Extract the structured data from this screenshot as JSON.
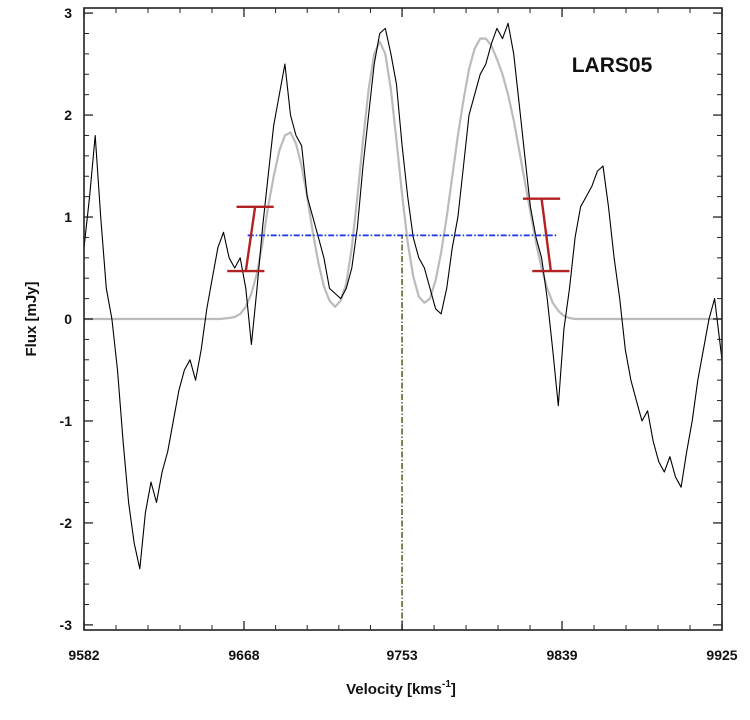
{
  "chart_data": {
    "type": "line",
    "annotation": "LARS05",
    "xlabel_main": "Velocity [kms",
    "xlabel_sup": "-1",
    "xlabel_close": "]",
    "ylabel": "Flux [mJy]",
    "xlim": [
      9582,
      9925
    ],
    "ylim": [
      -3.05,
      3.05
    ],
    "x_ticks": [
      9582,
      9668,
      9753,
      9839,
      9925
    ],
    "y_ticks": [
      -3,
      -2,
      -1,
      0,
      1,
      2,
      3
    ],
    "grid": false,
    "colors": {
      "observed": "#000000",
      "model": "#bbbbbb",
      "width_line": "#1a33e6",
      "center_line": "#556b2f",
      "error_bars": "#b22222"
    },
    "series": [
      {
        "role": "observed",
        "x": [
          9582,
          9585,
          9588,
          9591,
          9594,
          9597,
          9600,
          9603,
          9606,
          9609,
          9612,
          9615,
          9618,
          9621,
          9624,
          9627,
          9630,
          9633,
          9636,
          9639,
          9642,
          9645,
          9648,
          9651,
          9654,
          9657,
          9660,
          9663,
          9666,
          9669,
          9672,
          9675,
          9678,
          9681,
          9684,
          9687,
          9690,
          9693,
          9696,
          9699,
          9702,
          9705,
          9708,
          9711,
          9714,
          9717,
          9720,
          9723,
          9726,
          9729,
          9732,
          9735,
          9738,
          9741,
          9744,
          9747,
          9750,
          9753,
          9756,
          9759,
          9762,
          9765,
          9768,
          9771,
          9774,
          9777,
          9780,
          9783,
          9786,
          9789,
          9792,
          9795,
          9798,
          9801,
          9804,
          9807,
          9810,
          9813,
          9816,
          9819,
          9822,
          9825,
          9828,
          9831,
          9834,
          9837,
          9840,
          9843,
          9846,
          9849,
          9852,
          9855,
          9858,
          9861,
          9864,
          9867,
          9870,
          9873,
          9876,
          9879,
          9882,
          9885,
          9888,
          9891,
          9894,
          9897,
          9900,
          9903,
          9906,
          9909,
          9912,
          9915,
          9918,
          9921,
          9925
        ],
        "y": [
          0.7,
          1.2,
          1.8,
          1.0,
          0.3,
          0.0,
          -0.5,
          -1.2,
          -1.8,
          -2.2,
          -2.45,
          -1.9,
          -1.6,
          -1.8,
          -1.5,
          -1.3,
          -1.0,
          -0.7,
          -0.5,
          -0.4,
          -0.6,
          -0.3,
          0.1,
          0.4,
          0.7,
          0.85,
          0.6,
          0.5,
          0.6,
          0.3,
          -0.25,
          0.3,
          0.9,
          1.4,
          1.9,
          2.2,
          2.5,
          2.0,
          1.8,
          1.7,
          1.2,
          1.0,
          0.8,
          0.6,
          0.3,
          0.25,
          0.2,
          0.3,
          0.5,
          0.9,
          1.5,
          2.0,
          2.5,
          2.8,
          2.85,
          2.6,
          2.3,
          1.7,
          1.2,
          0.8,
          0.6,
          0.5,
          0.3,
          0.1,
          0.05,
          0.3,
          0.7,
          1.0,
          1.5,
          2.0,
          2.2,
          2.4,
          2.5,
          2.7,
          2.85,
          2.75,
          2.9,
          2.6,
          2.1,
          1.6,
          1.1,
          0.8,
          0.6,
          0.2,
          -0.3,
          -0.85,
          -0.1,
          0.3,
          0.8,
          1.1,
          1.2,
          1.3,
          1.45,
          1.5,
          1.1,
          0.6,
          0.2,
          -0.3,
          -0.6,
          -0.8,
          -1.0,
          -0.9,
          -1.2,
          -1.4,
          -1.5,
          -1.35,
          -1.55,
          -1.65,
          -1.3,
          -1.0,
          -0.6,
          -0.3,
          0.0,
          0.2,
          -0.4
        ]
      },
      {
        "role": "model",
        "x": [
          9582,
          9590,
          9600,
          9610,
          9620,
          9630,
          9640,
          9650,
          9655,
          9660,
          9663,
          9666,
          9669,
          9672,
          9675,
          9678,
          9681,
          9684,
          9687,
          9690,
          9693,
          9696,
          9699,
          9702,
          9705,
          9708,
          9711,
          9714,
          9717,
          9720,
          9723,
          9726,
          9729,
          9732,
          9735,
          9738,
          9741,
          9744,
          9747,
          9750,
          9753,
          9756,
          9759,
          9762,
          9765,
          9768,
          9771,
          9774,
          9777,
          9780,
          9783,
          9786,
          9789,
          9792,
          9795,
          9798,
          9801,
          9804,
          9807,
          9810,
          9813,
          9816,
          9819,
          9822,
          9825,
          9828,
          9831,
          9834,
          9837,
          9840,
          9843,
          9846,
          9850,
          9860,
          9870,
          9880,
          9890,
          9900,
          9910,
          9925
        ],
        "y": [
          0,
          0,
          0,
          0,
          0,
          0,
          0,
          0,
          0,
          0.01,
          0.02,
          0.05,
          0.12,
          0.25,
          0.45,
          0.75,
          1.1,
          1.4,
          1.65,
          1.8,
          1.83,
          1.72,
          1.5,
          1.2,
          0.85,
          0.55,
          0.32,
          0.18,
          0.12,
          0.18,
          0.35,
          0.7,
          1.2,
          1.75,
          2.25,
          2.6,
          2.72,
          2.6,
          2.25,
          1.75,
          1.22,
          0.75,
          0.42,
          0.22,
          0.16,
          0.2,
          0.38,
          0.65,
          1.0,
          1.4,
          1.8,
          2.15,
          2.45,
          2.65,
          2.75,
          2.75,
          2.68,
          2.55,
          2.4,
          2.2,
          1.95,
          1.65,
          1.35,
          1.05,
          0.75,
          0.5,
          0.3,
          0.16,
          0.08,
          0.03,
          0.01,
          0,
          0,
          0,
          0,
          0,
          0,
          0,
          0,
          0
        ]
      }
    ],
    "width_line": {
      "x": [
        9670,
        9836
      ],
      "y": 0.82
    },
    "center_line": {
      "x": 9753,
      "y": [
        -3.05,
        0.82
      ]
    },
    "error_bars": [
      {
        "x_top": 9674,
        "y_top": 1.1,
        "x_bottom": 9669,
        "y_bottom": 0.47,
        "cap_halfwidth": 10
      },
      {
        "x_top": 9828,
        "y_top": 1.18,
        "x_bottom": 9833,
        "y_bottom": 0.47,
        "cap_halfwidth": 10
      }
    ]
  }
}
